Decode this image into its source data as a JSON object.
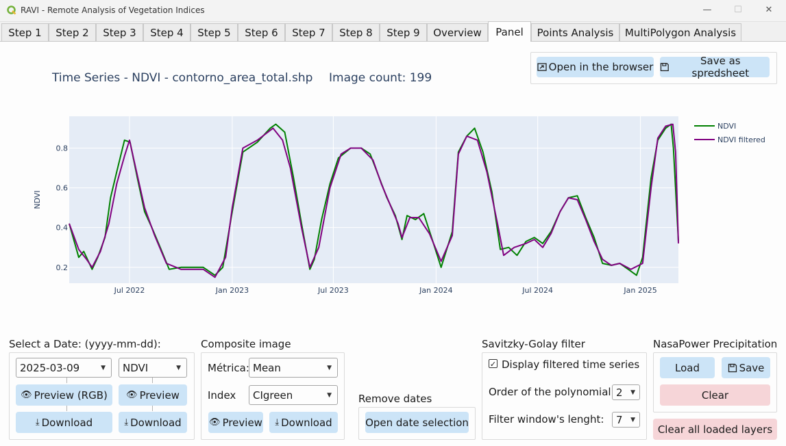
{
  "window": {
    "title": "RAVI - Remote Analysis of Vegetation Indices",
    "controls": [
      "—",
      "☐",
      "✕"
    ]
  },
  "tabs": [
    {
      "label": "Step 1"
    },
    {
      "label": "Step 2"
    },
    {
      "label": "Step 3"
    },
    {
      "label": "Step 4"
    },
    {
      "label": "Step 5"
    },
    {
      "label": "Step 6"
    },
    {
      "label": "Step 7"
    },
    {
      "label": "Step 8"
    },
    {
      "label": "Step 9"
    },
    {
      "label": "Overview"
    },
    {
      "label": "Panel"
    },
    {
      "label": "Points Analysis"
    },
    {
      "label": "MultiPolygon Analysis"
    }
  ],
  "active_tab": "Panel",
  "header": {
    "chart_title": "Time Series - NDVI - contorno_area_total.shp",
    "image_count": "Image count: 199",
    "open_browser_label": "Open in the browser",
    "save_spreadsheet_label": "Save as spredsheet"
  },
  "chart_data": {
    "type": "line",
    "title": "",
    "xlabel": "",
    "ylabel": "NDVI",
    "x_ticks": [
      "Jul 2022",
      "Jan 2023",
      "Jul 2023",
      "Jan 2024",
      "Jul 2024",
      "Jan 2025"
    ],
    "y_ticks": [
      "0.2",
      "0.4",
      "0.6",
      "0.8"
    ],
    "xlim": [
      "2022-03-15",
      "2025-03-10"
    ],
    "ylim": [
      0.12,
      0.96
    ],
    "legend_position": "top-right",
    "plot_background": "#e5ecf6",
    "grid": true,
    "series": [
      {
        "name": "NDVI",
        "color": "#008000",
        "points": [
          [
            "2022-03-15",
            0.42
          ],
          [
            "2022-04-01",
            0.25
          ],
          [
            "2022-04-10",
            0.28
          ],
          [
            "2022-04-25",
            0.19
          ],
          [
            "2022-05-05",
            0.25
          ],
          [
            "2022-05-18",
            0.35
          ],
          [
            "2022-05-28",
            0.55
          ],
          [
            "2022-06-08",
            0.68
          ],
          [
            "2022-06-22",
            0.84
          ],
          [
            "2022-07-02",
            0.83
          ],
          [
            "2022-07-15",
            0.65
          ],
          [
            "2022-07-28",
            0.48
          ],
          [
            "2022-08-10",
            0.4
          ],
          [
            "2022-08-25",
            0.3
          ],
          [
            "2022-09-10",
            0.19
          ],
          [
            "2022-10-01",
            0.2
          ],
          [
            "2022-11-10",
            0.2
          ],
          [
            "2022-12-01",
            0.16
          ],
          [
            "2022-12-15",
            0.2
          ],
          [
            "2023-01-01",
            0.48
          ],
          [
            "2023-01-20",
            0.78
          ],
          [
            "2023-02-15",
            0.83
          ],
          [
            "2023-03-10",
            0.9
          ],
          [
            "2023-03-20",
            0.92
          ],
          [
            "2023-04-05",
            0.88
          ],
          [
            "2023-04-20",
            0.66
          ],
          [
            "2023-05-05",
            0.42
          ],
          [
            "2023-05-20",
            0.19
          ],
          [
            "2023-05-28",
            0.24
          ],
          [
            "2023-06-10",
            0.44
          ],
          [
            "2023-06-25",
            0.62
          ],
          [
            "2023-07-10",
            0.75
          ],
          [
            "2023-08-01",
            0.8
          ],
          [
            "2023-08-20",
            0.8
          ],
          [
            "2023-09-05",
            0.77
          ],
          [
            "2023-09-20",
            0.66
          ],
          [
            "2023-10-05",
            0.55
          ],
          [
            "2023-10-20",
            0.46
          ],
          [
            "2023-11-01",
            0.34
          ],
          [
            "2023-11-10",
            0.46
          ],
          [
            "2023-11-25",
            0.44
          ],
          [
            "2023-12-10",
            0.47
          ],
          [
            "2023-12-25",
            0.34
          ],
          [
            "2024-01-10",
            0.2
          ],
          [
            "2024-01-30",
            0.38
          ],
          [
            "2024-02-10",
            0.78
          ],
          [
            "2024-02-25",
            0.86
          ],
          [
            "2024-03-10",
            0.9
          ],
          [
            "2024-03-25",
            0.78
          ],
          [
            "2024-04-10",
            0.58
          ],
          [
            "2024-04-25",
            0.29
          ],
          [
            "2024-05-10",
            0.3
          ],
          [
            "2024-05-25",
            0.26
          ],
          [
            "2024-06-10",
            0.33
          ],
          [
            "2024-06-25",
            0.35
          ],
          [
            "2024-07-10",
            0.32
          ],
          [
            "2024-07-25",
            0.38
          ],
          [
            "2024-08-10",
            0.48
          ],
          [
            "2024-08-25",
            0.55
          ],
          [
            "2024-09-10",
            0.56
          ],
          [
            "2024-09-25",
            0.45
          ],
          [
            "2024-10-10",
            0.35
          ],
          [
            "2024-10-25",
            0.22
          ],
          [
            "2024-11-10",
            0.21
          ],
          [
            "2024-11-25",
            0.22
          ],
          [
            "2024-12-10",
            0.19
          ],
          [
            "2024-12-25",
            0.16
          ],
          [
            "2025-01-05",
            0.25
          ],
          [
            "2025-01-20",
            0.65
          ],
          [
            "2025-02-01",
            0.84
          ],
          [
            "2025-02-15",
            0.9
          ],
          [
            "2025-02-25",
            0.92
          ],
          [
            "2025-03-01",
            0.8
          ],
          [
            "2025-03-10",
            0.33
          ]
        ]
      },
      {
        "name": "NDVI filtered",
        "color": "#800080",
        "points": [
          [
            "2022-03-15",
            0.42
          ],
          [
            "2022-04-01",
            0.29
          ],
          [
            "2022-04-15",
            0.24
          ],
          [
            "2022-04-25",
            0.2
          ],
          [
            "2022-05-10",
            0.28
          ],
          [
            "2022-05-25",
            0.42
          ],
          [
            "2022-06-08",
            0.62
          ],
          [
            "2022-06-22",
            0.76
          ],
          [
            "2022-07-01",
            0.84
          ],
          [
            "2022-07-12",
            0.7
          ],
          [
            "2022-07-28",
            0.5
          ],
          [
            "2022-08-15",
            0.36
          ],
          [
            "2022-09-05",
            0.22
          ],
          [
            "2022-10-01",
            0.19
          ],
          [
            "2022-11-10",
            0.19
          ],
          [
            "2022-12-01",
            0.15
          ],
          [
            "2022-12-20",
            0.25
          ],
          [
            "2023-01-01",
            0.5
          ],
          [
            "2023-01-20",
            0.8
          ],
          [
            "2023-02-15",
            0.84
          ],
          [
            "2023-03-15",
            0.9
          ],
          [
            "2023-04-01",
            0.84
          ],
          [
            "2023-04-15",
            0.7
          ],
          [
            "2023-05-05",
            0.4
          ],
          [
            "2023-05-20",
            0.2
          ],
          [
            "2023-06-05",
            0.3
          ],
          [
            "2023-06-25",
            0.6
          ],
          [
            "2023-07-15",
            0.77
          ],
          [
            "2023-08-01",
            0.8
          ],
          [
            "2023-08-20",
            0.8
          ],
          [
            "2023-09-10",
            0.74
          ],
          [
            "2023-09-25",
            0.62
          ],
          [
            "2023-10-10",
            0.52
          ],
          [
            "2023-10-25",
            0.42
          ],
          [
            "2023-11-01",
            0.35
          ],
          [
            "2023-11-15",
            0.45
          ],
          [
            "2023-12-01",
            0.45
          ],
          [
            "2023-12-20",
            0.37
          ],
          [
            "2024-01-10",
            0.23
          ],
          [
            "2024-01-30",
            0.36
          ],
          [
            "2024-02-10",
            0.77
          ],
          [
            "2024-02-25",
            0.86
          ],
          [
            "2024-03-15",
            0.84
          ],
          [
            "2024-04-01",
            0.68
          ],
          [
            "2024-04-20",
            0.42
          ],
          [
            "2024-05-01",
            0.26
          ],
          [
            "2024-05-20",
            0.3
          ],
          [
            "2024-06-10",
            0.32
          ],
          [
            "2024-06-25",
            0.34
          ],
          [
            "2024-07-10",
            0.3
          ],
          [
            "2024-07-25",
            0.37
          ],
          [
            "2024-08-10",
            0.48
          ],
          [
            "2024-08-25",
            0.55
          ],
          [
            "2024-09-10",
            0.54
          ],
          [
            "2024-09-25",
            0.44
          ],
          [
            "2024-10-10",
            0.33
          ],
          [
            "2024-10-25",
            0.24
          ],
          [
            "2024-11-10",
            0.21
          ],
          [
            "2024-11-25",
            0.22
          ],
          [
            "2024-12-15",
            0.19
          ],
          [
            "2025-01-05",
            0.22
          ],
          [
            "2025-01-20",
            0.6
          ],
          [
            "2025-02-01",
            0.85
          ],
          [
            "2025-02-15",
            0.91
          ],
          [
            "2025-02-28",
            0.92
          ],
          [
            "2025-03-05",
            0.78
          ],
          [
            "2025-03-10",
            0.32
          ]
        ]
      }
    ]
  },
  "date_section": {
    "title": "Select a Date: (yyyy-mm-dd):",
    "date_value": "2025-03-09",
    "index_value": "NDVI",
    "preview_rgb_label": "Preview (RGB)",
    "preview_label": "Preview",
    "download_label": "Download",
    "download2_label": "Download"
  },
  "composite": {
    "title": "Composite image",
    "metric_label": "Métrica:",
    "metric_value": "Mean",
    "index_label": "Index",
    "index_value": "CIgreen",
    "preview_label": "Preview",
    "download_label": "Download"
  },
  "remove_dates": {
    "title": "Remove dates",
    "button_label": "Open date selection"
  },
  "savitzky": {
    "title": "Savitzky-Golay filter",
    "checkbox_label": "Display filtered time series",
    "checked": true,
    "order_label": "Order of the polynomial",
    "order_value": "2",
    "window_label": "Filter window's lenght:",
    "window_value": "7"
  },
  "nasapower": {
    "title": "NasaPower Precipitation",
    "load_label": "Load",
    "save_label": "Save",
    "clear_label": "Clear",
    "clear_all_label": "Clear all loaded layers"
  }
}
